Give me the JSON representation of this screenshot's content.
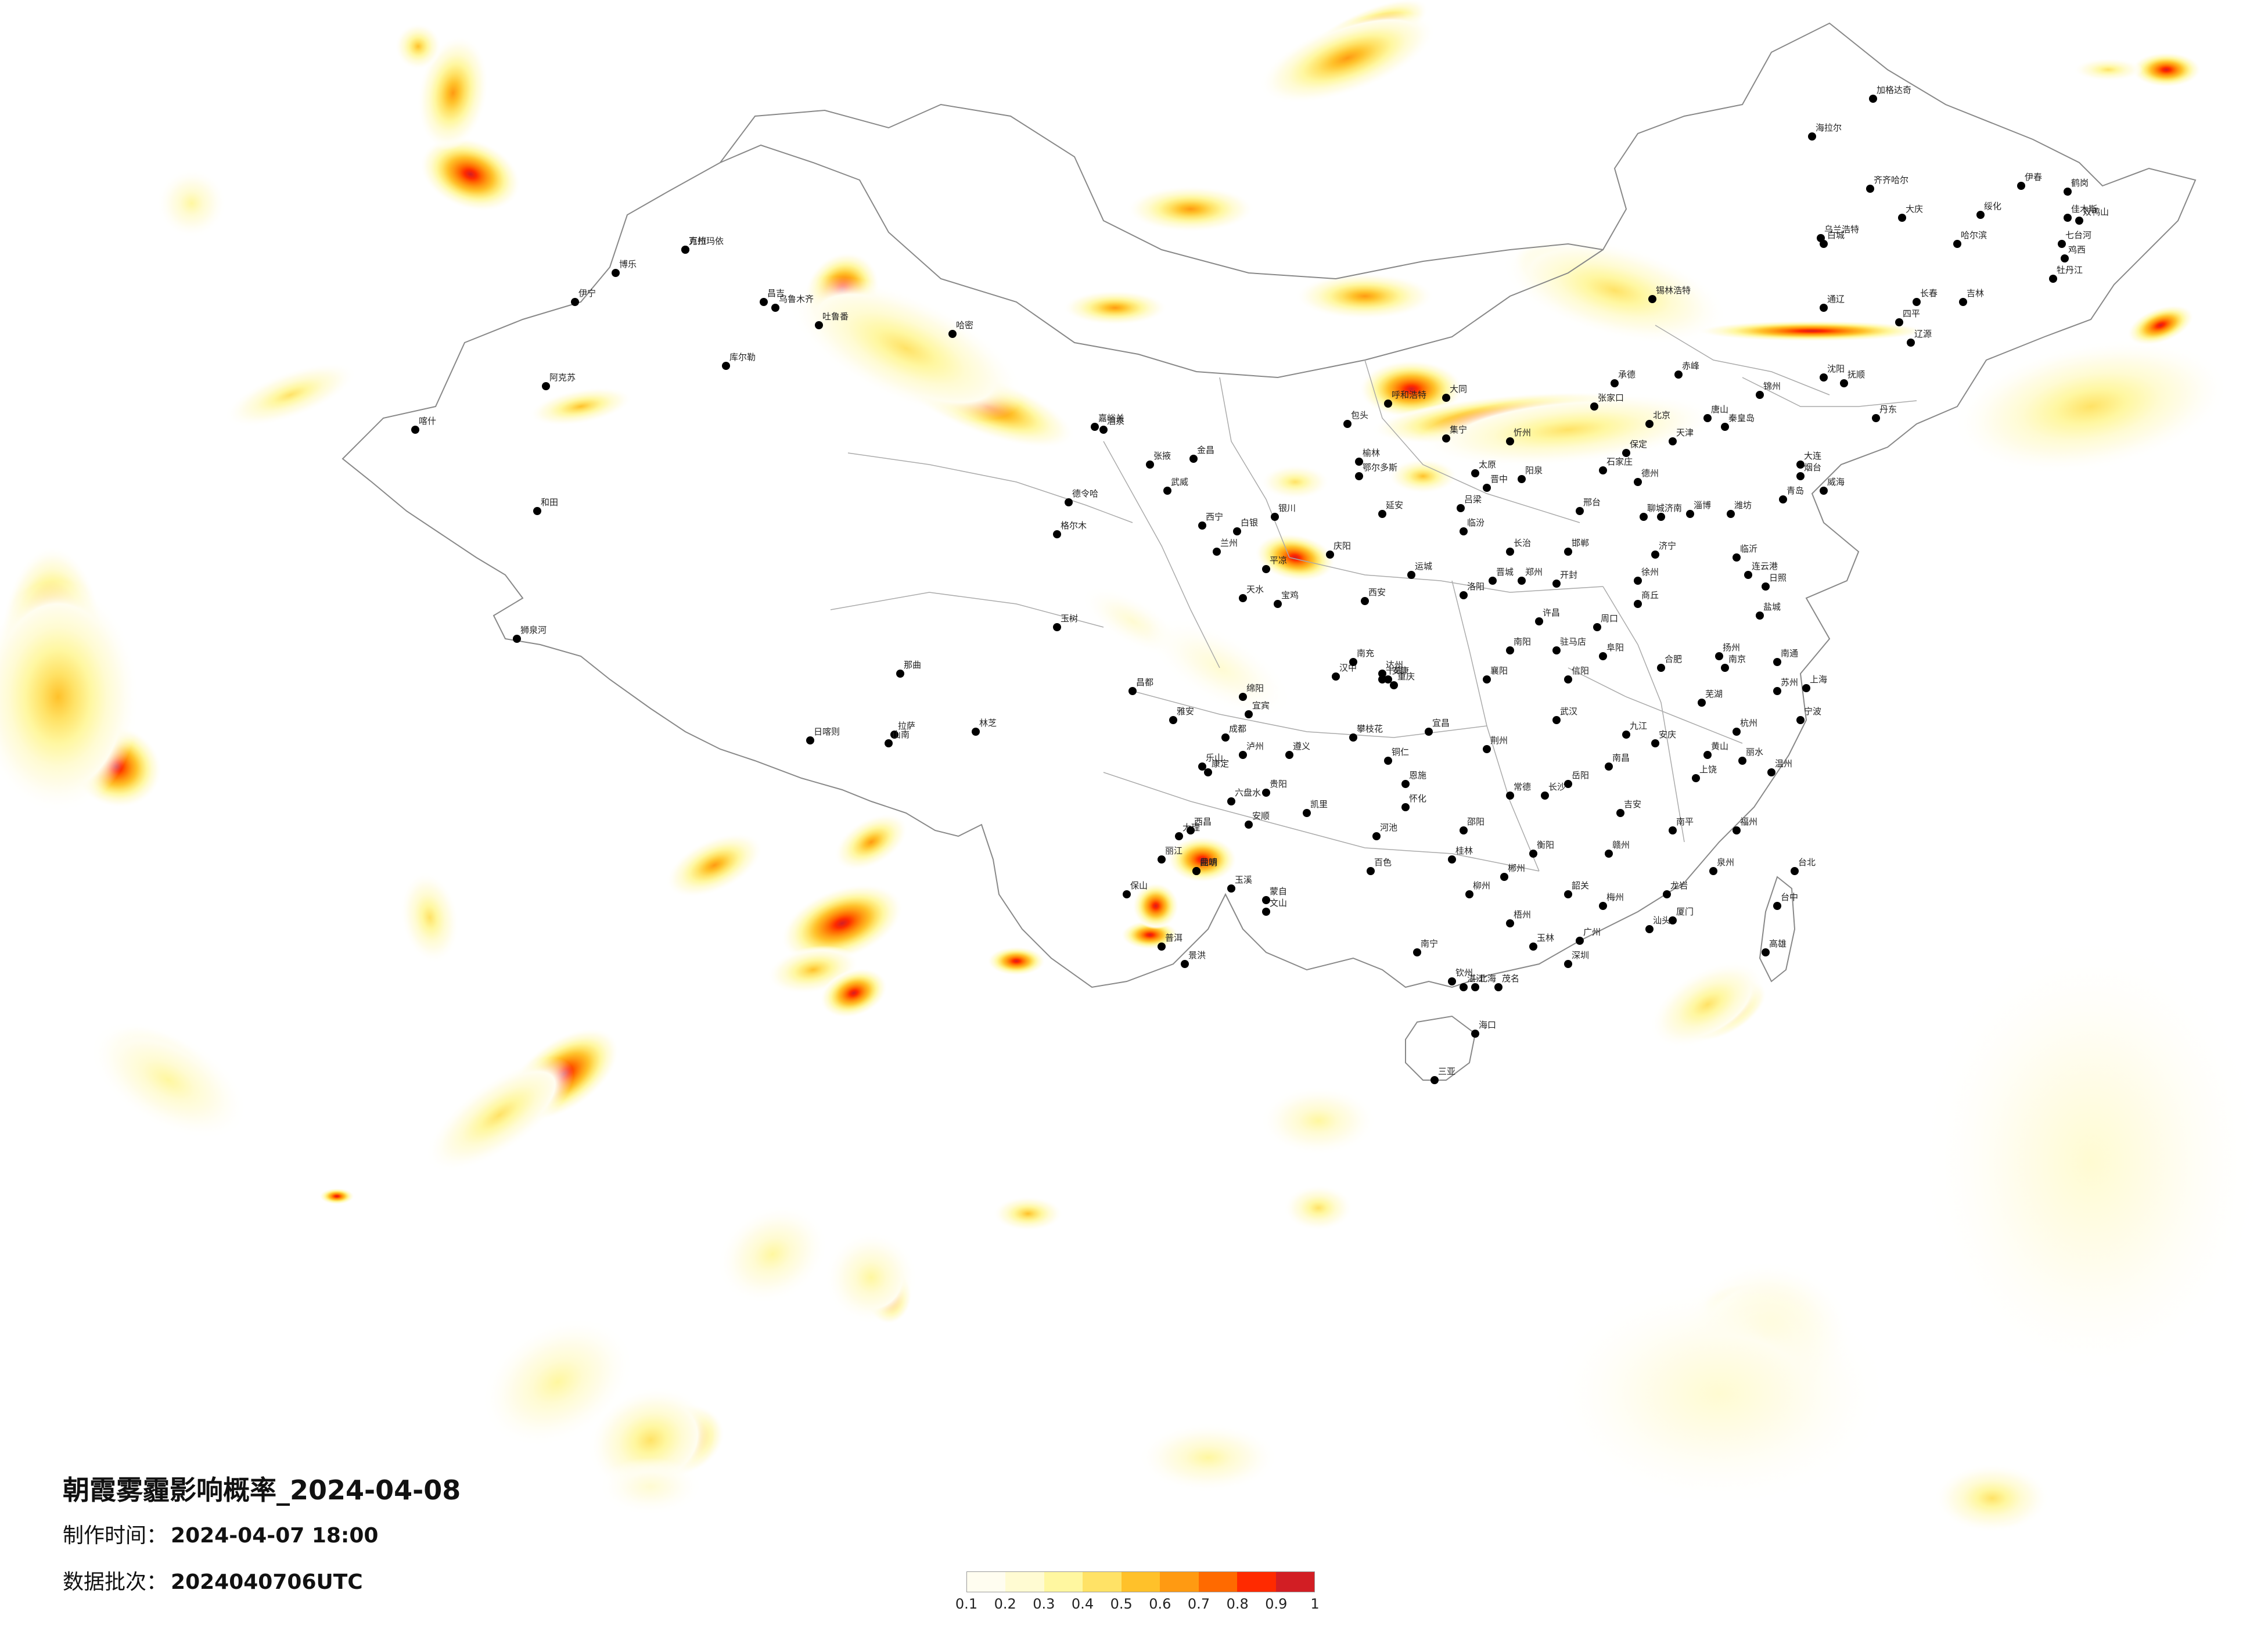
{
  "title": "朝霞雾霾影响概率_2024-04-08",
  "meta": [
    {
      "key": "制作时间：",
      "value": "2024-04-07 18:00"
    },
    {
      "key": "数据批次：",
      "value": "2024040706UTC"
    }
  ],
  "legend": {
    "colors": [
      "#fffdf0",
      "#fffbd2",
      "#fff7a0",
      "#ffe266",
      "#ffc12a",
      "#ff9a12",
      "#ff6a00",
      "#ff2a00",
      "#d21e24"
    ],
    "ticks": [
      "0.1",
      "0.2",
      "0.3",
      "0.4",
      "0.5",
      "0.6",
      "0.7",
      "0.8",
      "0.9",
      "1"
    ]
  },
  "map_style": {
    "border_color": "#888888",
    "city_dot_color": "#000000",
    "background": "#ffffff"
  },
  "cities": [
    {
      "name": "克拉玛依"
    },
    {
      "name": "昌吉"
    },
    {
      "name": "乌鲁木齐"
    },
    {
      "name": "哈密"
    },
    {
      "name": "伊宁"
    },
    {
      "name": "博乐"
    },
    {
      "name": "库尔勒"
    },
    {
      "name": "阿克苏"
    },
    {
      "name": "喀什"
    },
    {
      "name": "和田"
    },
    {
      "name": "吐鲁番"
    },
    {
      "name": "嘉峪关"
    },
    {
      "name": "酒泉"
    },
    {
      "name": "张掖"
    },
    {
      "name": "金昌"
    },
    {
      "name": "武威"
    },
    {
      "name": "西宁"
    },
    {
      "name": "兰州"
    },
    {
      "name": "银川"
    },
    {
      "name": "白银"
    },
    {
      "name": "格尔木"
    },
    {
      "name": "德令哈"
    },
    {
      "name": "玉树"
    },
    {
      "name": "拉萨"
    },
    {
      "name": "日喀则"
    },
    {
      "name": "山南"
    },
    {
      "name": "林芝"
    },
    {
      "name": "昌都"
    },
    {
      "name": "那曲"
    },
    {
      "name": "狮泉河"
    },
    {
      "name": "呼和浩特"
    },
    {
      "name": "包头"
    },
    {
      "name": "鄂尔多斯"
    },
    {
      "name": "集宁"
    },
    {
      "name": "锡林浩特"
    },
    {
      "name": "海拉尔"
    },
    {
      "name": "加格达奇"
    },
    {
      "name": "齐齐哈尔"
    },
    {
      "name": "大庆"
    },
    {
      "name": "哈尔滨"
    },
    {
      "name": "绥化"
    },
    {
      "name": "伊春"
    },
    {
      "name": "鹤岗"
    },
    {
      "name": "佳木斯"
    },
    {
      "name": "双鸭山"
    },
    {
      "name": "七台河"
    },
    {
      "name": "鸡西"
    },
    {
      "name": "牡丹江"
    },
    {
      "name": "乌兰浩特"
    },
    {
      "name": "白城"
    },
    {
      "name": "通辽"
    },
    {
      "name": "长春"
    },
    {
      "name": "吉林"
    },
    {
      "name": "四平"
    },
    {
      "name": "辽源"
    },
    {
      "name": "沈阳"
    },
    {
      "name": "抚顺"
    },
    {
      "name": "丹东"
    },
    {
      "name": "大连"
    },
    {
      "name": "锦州"
    },
    {
      "name": "赤峰"
    },
    {
      "name": "承德"
    },
    {
      "name": "张家口"
    },
    {
      "name": "北京"
    },
    {
      "name": "天津"
    },
    {
      "name": "唐山"
    },
    {
      "name": "秦皇岛"
    },
    {
      "name": "石家庄"
    },
    {
      "name": "保定"
    },
    {
      "name": "太原"
    },
    {
      "name": "大同"
    },
    {
      "name": "忻州"
    },
    {
      "name": "阳泉"
    },
    {
      "name": "晋中"
    },
    {
      "name": "吕梁"
    },
    {
      "name": "临汾"
    },
    {
      "name": "运城"
    },
    {
      "name": "长治"
    },
    {
      "name": "晋城"
    },
    {
      "name": "邢台"
    },
    {
      "name": "邯郸"
    },
    {
      "name": "济南"
    },
    {
      "name": "青岛"
    },
    {
      "name": "烟台"
    },
    {
      "name": "威海"
    },
    {
      "name": "潍坊"
    },
    {
      "name": "淄博"
    },
    {
      "name": "临沂"
    },
    {
      "name": "日照"
    },
    {
      "name": "济宁"
    },
    {
      "name": "聊城"
    },
    {
      "name": "德州"
    },
    {
      "name": "郑州"
    },
    {
      "name": "开封"
    },
    {
      "name": "洛阳"
    },
    {
      "name": "许昌"
    },
    {
      "name": "南阳"
    },
    {
      "name": "信阳"
    },
    {
      "name": "驻马店"
    },
    {
      "name": "周口"
    },
    {
      "name": "商丘"
    },
    {
      "name": "西安"
    },
    {
      "name": "延安"
    },
    {
      "name": "榆林"
    },
    {
      "name": "宝鸡"
    },
    {
      "name": "汉中"
    },
    {
      "name": "安康"
    },
    {
      "name": "天水"
    },
    {
      "name": "平凉"
    },
    {
      "name": "庆阳"
    },
    {
      "name": "南京"
    },
    {
      "name": "徐州"
    },
    {
      "name": "连云港"
    },
    {
      "name": "盐城"
    },
    {
      "name": "扬州"
    },
    {
      "name": "南通"
    },
    {
      "name": "苏州"
    },
    {
      "name": "上海"
    },
    {
      "name": "杭州"
    },
    {
      "name": "宁波"
    },
    {
      "name": "温州"
    },
    {
      "name": "丽水"
    },
    {
      "name": "合肥"
    },
    {
      "name": "芜湖"
    },
    {
      "name": "安庆"
    },
    {
      "name": "黄山"
    },
    {
      "name": "阜阳"
    },
    {
      "name": "武汉"
    },
    {
      "name": "宜昌"
    },
    {
      "name": "襄阳"
    },
    {
      "name": "十堰"
    },
    {
      "name": "荆州"
    },
    {
      "name": "恩施"
    },
    {
      "name": "长沙"
    },
    {
      "name": "岳阳"
    },
    {
      "name": "常德"
    },
    {
      "name": "衡阳"
    },
    {
      "name": "郴州"
    },
    {
      "name": "邵阳"
    },
    {
      "name": "怀化"
    },
    {
      "name": "南昌"
    },
    {
      "name": "九江"
    },
    {
      "name": "上饶"
    },
    {
      "name": "赣州"
    },
    {
      "name": "吉安"
    },
    {
      "name": "福州"
    },
    {
      "name": "厦门"
    },
    {
      "name": "泉州"
    },
    {
      "name": "南平"
    },
    {
      "name": "龙岩"
    },
    {
      "name": "台北"
    },
    {
      "name": "台中"
    },
    {
      "name": "高雄"
    },
    {
      "name": "广州"
    },
    {
      "name": "深圳"
    },
    {
      "name": "韶关"
    },
    {
      "name": "汕头"
    },
    {
      "name": "梅州"
    },
    {
      "name": "湛江"
    },
    {
      "name": "茂名"
    },
    {
      "name": "南宁"
    },
    {
      "name": "桂林"
    },
    {
      "name": "柳州"
    },
    {
      "name": "梧州"
    },
    {
      "name": "北海"
    },
    {
      "name": "钦州"
    },
    {
      "name": "百色"
    },
    {
      "name": "河池"
    },
    {
      "name": "玉林"
    },
    {
      "name": "海口"
    },
    {
      "name": "三亚"
    },
    {
      "name": "贵阳"
    },
    {
      "name": "遵义"
    },
    {
      "name": "六盘水"
    },
    {
      "name": "安顺"
    },
    {
      "name": "凯里"
    },
    {
      "name": "铜仁"
    },
    {
      "name": "昆明"
    },
    {
      "name": "曲靖"
    },
    {
      "name": "大理"
    },
    {
      "name": "丽江"
    },
    {
      "name": "保山"
    },
    {
      "name": "普洱"
    },
    {
      "name": "景洪"
    },
    {
      "name": "蒙自"
    },
    {
      "name": "文山"
    },
    {
      "name": "玉溪"
    },
    {
      "name": "成都"
    },
    {
      "name": "绵阳"
    },
    {
      "name": "南充"
    },
    {
      "name": "达州"
    },
    {
      "name": "宜宾"
    },
    {
      "name": "泸州"
    },
    {
      "name": "乐山"
    },
    {
      "name": "雅安"
    },
    {
      "name": "康定"
    },
    {
      "name": "西昌"
    },
    {
      "name": "攀枝花"
    },
    {
      "name": "重庆"
    },
    {
      "name": "万州"
    }
  ]
}
